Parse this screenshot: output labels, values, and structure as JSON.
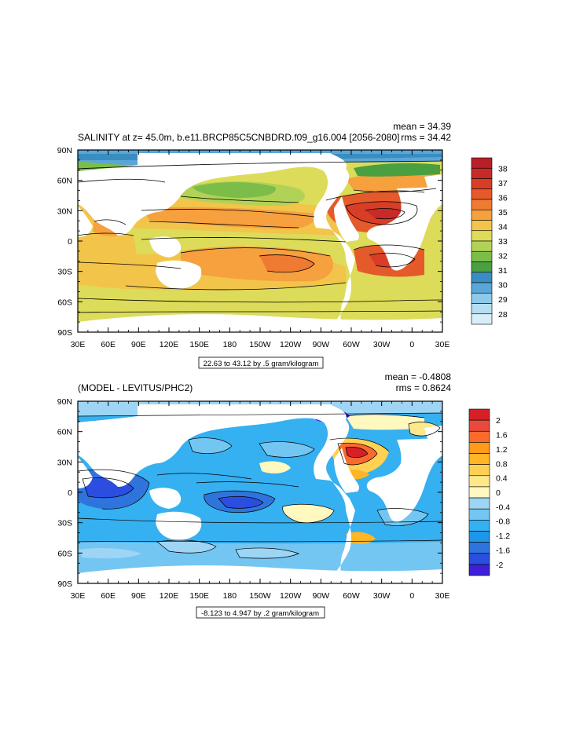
{
  "colors": {
    "salinity_levels": [
      "#d6eef8",
      "#b5def2",
      "#8ec8ea",
      "#5aa6d8",
      "#3a8dc0",
      "#4aa040",
      "#7cbd4a",
      "#b2d257",
      "#dcdc5a",
      "#f2c44a",
      "#f6a03e",
      "#ef7a32",
      "#e55a2a",
      "#d83d26",
      "#c82a28",
      "#b82028"
    ],
    "diff_levels": [
      "#3d1fd6",
      "#2b4de0",
      "#2f74dc",
      "#1e96e8",
      "#35b0f0",
      "#74c6f2",
      "#9ed4f4",
      "#fff8bf",
      "#ffe88a",
      "#ffd153",
      "#ffb526",
      "#ff9a1a",
      "#f86a2e",
      "#e84a3c",
      "#d81f26"
    ],
    "land": "#ffffff"
  },
  "chart_data": [
    {
      "type": "heatmap",
      "title": "SALINITY at z=  45.0m, b.e11.BRCP85C5CNBDRD.f09_g16.004 [2056-2080]",
      "mean_label": "mean = 34.39",
      "rms_label": "rms = 34.42",
      "range_label": "22.63 to 43.12 by .5 gram/kilogram",
      "x_ticks": [
        "30E",
        "60E",
        "90E",
        "120E",
        "150E",
        "180",
        "150W",
        "120W",
        "90W",
        "60W",
        "30W",
        "0",
        "30E"
      ],
      "y_ticks": [
        "90N",
        "60N",
        "30N",
        "0",
        "30S",
        "60S",
        "90S"
      ],
      "colorbar_labels": [
        "38",
        "37",
        "36",
        "35",
        "34",
        "33",
        "32",
        "31",
        "30",
        "29",
        "28"
      ],
      "xlim": [
        30,
        390
      ],
      "ylim": [
        -90,
        90
      ]
    },
    {
      "type": "heatmap",
      "title": "(MODEL - LEVITUS/PHC2)",
      "mean_label": "mean = -0.4808",
      "rms_label": "rms = 0.8624",
      "range_label": "-8.123 to 4.947 by .2 gram/kilogram",
      "x_ticks": [
        "30E",
        "60E",
        "90E",
        "120E",
        "150E",
        "180",
        "150W",
        "120W",
        "90W",
        "60W",
        "30W",
        "0",
        "30E"
      ],
      "y_ticks": [
        "90N",
        "60N",
        "30N",
        "0",
        "30S",
        "60S",
        "90S"
      ],
      "colorbar_labels": [
        "2",
        "1.6",
        "1.2",
        "0.8",
        "0.4",
        "0",
        "-0.4",
        "-0.8",
        "-1.2",
        "-1.6",
        "-2"
      ],
      "xlim": [
        30,
        390
      ],
      "ylim": [
        -90,
        90
      ]
    }
  ]
}
